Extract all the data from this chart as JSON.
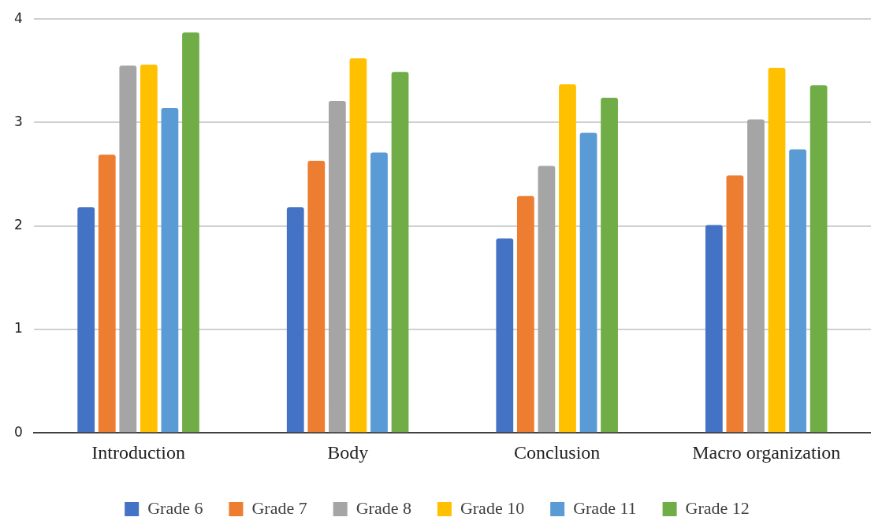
{
  "chart_data": {
    "type": "bar",
    "categories": [
      "Introduction",
      "Body",
      "Conclusion",
      "Macro organization"
    ],
    "series": [
      {
        "name": "Grade 6",
        "color": "#4472c4",
        "values": [
          2.18,
          2.18,
          1.88,
          2.01
        ]
      },
      {
        "name": "Grade 7",
        "color": "#ed7d31",
        "values": [
          2.69,
          2.63,
          2.29,
          2.49
        ]
      },
      {
        "name": "Grade 8",
        "color": "#a5a5a5",
        "values": [
          3.55,
          3.21,
          2.58,
          3.03
        ]
      },
      {
        "name": "Grade 10",
        "color": "#ffc000",
        "values": [
          3.56,
          3.62,
          3.37,
          3.53
        ]
      },
      {
        "name": "Grade 11",
        "color": "#5b9bd5",
        "values": [
          3.14,
          2.71,
          2.9,
          2.74
        ]
      },
      {
        "name": "Grade 12",
        "color": "#70ad47",
        "values": [
          3.87,
          3.49,
          3.24,
          3.36
        ]
      }
    ],
    "ylim": [
      0,
      4
    ],
    "yticks": [
      0,
      1,
      2,
      3,
      4
    ],
    "grid": "y",
    "legend": "bottom"
  }
}
